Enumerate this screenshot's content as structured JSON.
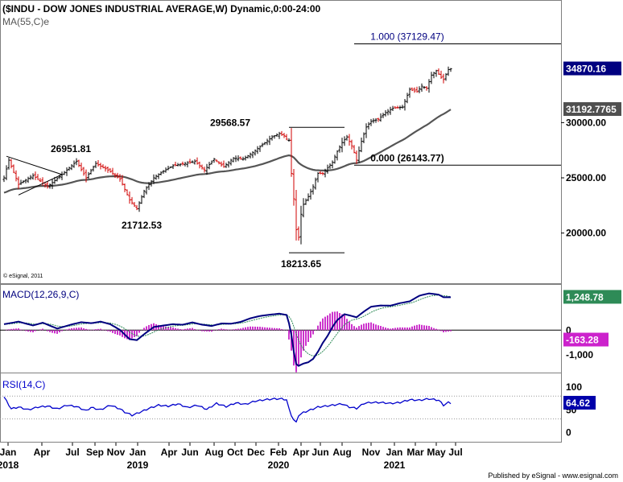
{
  "header": {
    "title": "($INDU - DOW JONES INDUSTRIAL AVERAGE,W) Dynamic,0:00-24:00",
    "ma_label": "MA(55,C)e",
    "copyright": "© eSignal, 2011",
    "footer": "Published by eSignal - www.esignal.com"
  },
  "colors": {
    "up_bar": "#000000",
    "down_bar": "#d00000",
    "ma_line": "#555555",
    "macd_line": "#00007f",
    "signal_line": "#2e8b57",
    "histogram": "#cc33cc",
    "rsi_line": "#0000cc",
    "price_badge": "#000080",
    "ma_badge": "#505050",
    "macd_badge": "#2e8b57",
    "hist_badge": "#cc22cc",
    "rsi_badge": "#0000aa"
  },
  "chart_data": [
    {
      "type": "candlestick",
      "panel": "price",
      "title": "($INDU - DOW JONES INDUSTRIAL AVERAGE,W) Dynamic,0:00-24:00",
      "timeframe": "weekly",
      "x_ticks": [
        {
          "month": "Jan",
          "year": "2018"
        },
        {
          "month": "Apr",
          "year": ""
        },
        {
          "month": "Jul",
          "year": ""
        },
        {
          "month": "Sep",
          "year": ""
        },
        {
          "month": "Nov",
          "year": ""
        },
        {
          "month": "Jan",
          "year": "2019"
        },
        {
          "month": "Apr",
          "year": ""
        },
        {
          "month": "Jun",
          "year": ""
        },
        {
          "month": "Aug",
          "year": ""
        },
        {
          "month": "Oct",
          "year": ""
        },
        {
          "month": "Dec",
          "year": ""
        },
        {
          "month": "Feb",
          "year": "2020"
        },
        {
          "month": "Apr",
          "year": ""
        },
        {
          "month": "Jun",
          "year": ""
        },
        {
          "month": "Aug",
          "year": ""
        },
        {
          "month": "Nov",
          "year": ""
        },
        {
          "month": "Jan",
          "year": "2021"
        },
        {
          "month": "Mar",
          "year": ""
        },
        {
          "month": "May",
          "year": ""
        },
        {
          "month": "Jul",
          "year": ""
        }
      ],
      "y_ticks": [
        "30000.00",
        "25000.00",
        "20000.00"
      ],
      "y_tick_values": [
        30000,
        25000,
        20000
      ],
      "ylim": [
        15600,
        39500
      ],
      "ma": {
        "label": "MA(55,C)e",
        "period": 55,
        "last": "31192.7765"
      },
      "last_price": "34870.16",
      "annotations": [
        {
          "text": "26951.81",
          "value": 26951.81
        },
        {
          "text": "21712.53",
          "value": 21712.53
        },
        {
          "text": "29568.57",
          "value": 29568.57
        },
        {
          "text": "18213.65",
          "value": 18213.65
        }
      ],
      "fibonacci": [
        {
          "text": "1.000 (37129.47)",
          "value": 37129.47
        },
        {
          "text": "0.000 (26143.77)",
          "value": 26143.77
        }
      ],
      "anchors": [
        [
          0,
          25000
        ],
        [
          2,
          26600
        ],
        [
          6,
          24400
        ],
        [
          12,
          25200
        ],
        [
          18,
          24200
        ],
        [
          24,
          25300
        ],
        [
          30,
          26500
        ],
        [
          34,
          25000
        ],
        [
          38,
          26300
        ],
        [
          43,
          25700
        ],
        [
          48,
          24900
        ],
        [
          52,
          23000
        ],
        [
          55,
          22200
        ],
        [
          58,
          23800
        ],
        [
          62,
          25000
        ],
        [
          66,
          25600
        ],
        [
          70,
          26100
        ],
        [
          75,
          26300
        ],
        [
          79,
          26500
        ],
        [
          83,
          25700
        ],
        [
          87,
          26700
        ],
        [
          91,
          26000
        ],
        [
          95,
          26800
        ],
        [
          99,
          26700
        ],
        [
          103,
          27300
        ],
        [
          107,
          28000
        ],
        [
          111,
          28700
        ],
        [
          114,
          29000
        ],
        [
          116,
          28800
        ],
        [
          117,
          28500
        ],
        [
          118,
          28400
        ],
        [
          119,
          25400
        ],
        [
          120,
          23100
        ],
        [
          121,
          20300
        ],
        [
          122,
          19600
        ],
        [
          123,
          21700
        ],
        [
          124,
          22600
        ],
        [
          126,
          23300
        ],
        [
          128,
          24200
        ],
        [
          130,
          25400
        ],
        [
          132,
          25400
        ],
        [
          134,
          25900
        ],
        [
          136,
          26400
        ],
        [
          138,
          27400
        ],
        [
          140,
          28200
        ],
        [
          142,
          28700
        ],
        [
          144,
          27900
        ],
        [
          145,
          27300
        ],
        [
          146,
          26600
        ],
        [
          148,
          28300
        ],
        [
          150,
          29600
        ],
        [
          152,
          30100
        ],
        [
          155,
          30300
        ],
        [
          158,
          30900
        ],
        [
          161,
          31300
        ],
        [
          165,
          31400
        ],
        [
          168,
          33000
        ],
        [
          171,
          32800
        ],
        [
          173,
          33300
        ],
        [
          175,
          33100
        ],
        [
          177,
          34300
        ],
        [
          179,
          34700
        ],
        [
          181,
          34100
        ],
        [
          182,
          33900
        ],
        [
          184,
          34800
        ],
        [
          185,
          34870
        ]
      ]
    },
    {
      "type": "line",
      "panel": "macd",
      "title": "MACD(12,26,9,C)",
      "y_ticks": [
        "0",
        "-1,000"
      ],
      "y_tick_values": [
        0,
        -1000
      ],
      "ylim": [
        -1650,
        1700
      ],
      "last_macd": "1,248.78",
      "last_histogram": "-163.28",
      "macd_anchors": [
        [
          0,
          200
        ],
        [
          6,
          300
        ],
        [
          12,
          150
        ],
        [
          16,
          260
        ],
        [
          22,
          30
        ],
        [
          28,
          190
        ],
        [
          32,
          280
        ],
        [
          36,
          240
        ],
        [
          40,
          300
        ],
        [
          44,
          200
        ],
        [
          48,
          -20
        ],
        [
          52,
          -380
        ],
        [
          55,
          -420
        ],
        [
          58,
          -190
        ],
        [
          62,
          90
        ],
        [
          66,
          150
        ],
        [
          70,
          200
        ],
        [
          74,
          180
        ],
        [
          78,
          270
        ],
        [
          82,
          180
        ],
        [
          86,
          130
        ],
        [
          90,
          230
        ],
        [
          94,
          220
        ],
        [
          98,
          290
        ],
        [
          102,
          430
        ],
        [
          106,
          520
        ],
        [
          110,
          570
        ],
        [
          114,
          610
        ],
        [
          117,
          560
        ],
        [
          118,
          240
        ],
        [
          119,
          -210
        ],
        [
          120,
          -870
        ],
        [
          121,
          -1350
        ],
        [
          122,
          -1420
        ],
        [
          124,
          -1330
        ],
        [
          126,
          -1280
        ],
        [
          128,
          -1150
        ],
        [
          130,
          -870
        ],
        [
          132,
          -530
        ],
        [
          134,
          -250
        ],
        [
          136,
          90
        ],
        [
          138,
          360
        ],
        [
          141,
          590
        ],
        [
          144,
          520
        ],
        [
          146,
          470
        ],
        [
          149,
          690
        ],
        [
          152,
          880
        ],
        [
          156,
          930
        ],
        [
          160,
          920
        ],
        [
          164,
          1020
        ],
        [
          168,
          1090
        ],
        [
          172,
          1310
        ],
        [
          176,
          1400
        ],
        [
          180,
          1350
        ],
        [
          182,
          1250
        ],
        [
          185,
          1249
        ]
      ]
    },
    {
      "type": "line",
      "panel": "rsi",
      "title": "RSI(14,C)",
      "y_ticks": [
        "100",
        "50",
        "0"
      ],
      "y_tick_values": [
        100,
        50,
        0
      ],
      "ylim": [
        -20,
        128
      ],
      "levels": [
        80,
        30
      ],
      "last_value": "64.62",
      "anchors": [
        [
          0,
          78
        ],
        [
          3,
          52
        ],
        [
          6,
          56
        ],
        [
          10,
          50
        ],
        [
          14,
          56
        ],
        [
          18,
          58
        ],
        [
          22,
          52
        ],
        [
          26,
          60
        ],
        [
          30,
          57
        ],
        [
          34,
          48
        ],
        [
          36,
          55
        ],
        [
          40,
          50
        ],
        [
          44,
          60
        ],
        [
          48,
          52
        ],
        [
          50,
          45
        ],
        [
          53,
          38
        ],
        [
          56,
          44
        ],
        [
          60,
          53
        ],
        [
          64,
          60
        ],
        [
          68,
          58
        ],
        [
          72,
          63
        ],
        [
          76,
          55
        ],
        [
          80,
          60
        ],
        [
          84,
          51
        ],
        [
          88,
          64
        ],
        [
          92,
          57
        ],
        [
          96,
          65
        ],
        [
          100,
          62
        ],
        [
          104,
          69
        ],
        [
          108,
          72
        ],
        [
          112,
          74
        ],
        [
          115,
          74
        ],
        [
          117,
          72
        ],
        [
          118,
          52
        ],
        [
          119,
          38
        ],
        [
          120,
          28
        ],
        [
          121,
          22
        ],
        [
          122,
          38
        ],
        [
          124,
          44
        ],
        [
          127,
          50
        ],
        [
          130,
          56
        ],
        [
          133,
          58
        ],
        [
          136,
          60
        ],
        [
          140,
          63
        ],
        [
          143,
          56
        ],
        [
          146,
          53
        ],
        [
          149,
          64
        ],
        [
          152,
          66
        ],
        [
          156,
          66
        ],
        [
          160,
          64
        ],
        [
          164,
          66
        ],
        [
          168,
          72
        ],
        [
          172,
          71
        ],
        [
          176,
          74
        ],
        [
          180,
          71
        ],
        [
          182,
          60
        ],
        [
          184,
          66
        ],
        [
          185,
          64.62
        ]
      ]
    }
  ]
}
